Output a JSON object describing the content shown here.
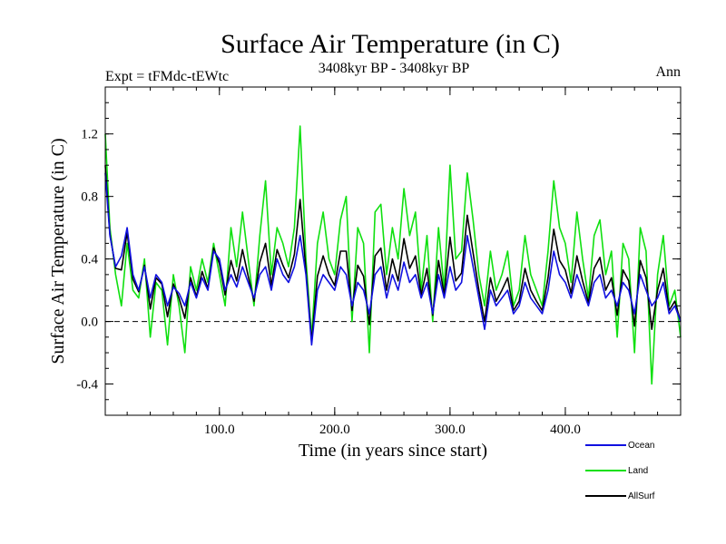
{
  "chart_data": {
    "type": "line",
    "title": "Surface Air Temperature (in C)",
    "subtitle": "3408kyr BP - 3408kyr BP",
    "experiment_label": "Expt = tFMdc-tEWtc",
    "season_label": "Ann",
    "xlabel": "Time (in years since start)",
    "ylabel": "Surface Air Temperature (in C)",
    "xlim": [
      1,
      500
    ],
    "ylim": [
      -0.6,
      1.5
    ],
    "x_ticks": [
      100,
      200,
      300,
      400
    ],
    "x_tick_labels": [
      "100.0",
      "200.0",
      "300.0",
      "400.0"
    ],
    "y_ticks": [
      -0.4,
      0.0,
      0.4,
      0.8,
      1.2
    ],
    "y_tick_labels": [
      "-0.4",
      "0.0",
      "0.4",
      "0.8",
      "1.2"
    ],
    "zero_line": 0.0,
    "legend_position": "bottom-right",
    "series": [
      {
        "name": "Ocean",
        "color": "#1010e0",
        "x": [
          1,
          5,
          10,
          15,
          20,
          25,
          30,
          35,
          40,
          45,
          50,
          55,
          60,
          65,
          70,
          75,
          80,
          85,
          90,
          95,
          100,
          105,
          110,
          115,
          120,
          125,
          130,
          135,
          140,
          145,
          150,
          155,
          160,
          165,
          170,
          175,
          180,
          185,
          190,
          195,
          200,
          205,
          210,
          215,
          220,
          225,
          230,
          235,
          240,
          245,
          250,
          255,
          260,
          265,
          270,
          275,
          280,
          285,
          290,
          295,
          300,
          305,
          310,
          315,
          320,
          325,
          330,
          335,
          340,
          345,
          350,
          355,
          360,
          365,
          370,
          375,
          380,
          385,
          390,
          395,
          400,
          405,
          410,
          415,
          420,
          425,
          430,
          435,
          440,
          445,
          450,
          455,
          460,
          465,
          470,
          475,
          480,
          485,
          490,
          495,
          500
        ],
        "values": [
          0.95,
          0.55,
          0.35,
          0.42,
          0.6,
          0.3,
          0.2,
          0.35,
          0.15,
          0.3,
          0.25,
          0.1,
          0.22,
          0.18,
          0.1,
          0.25,
          0.15,
          0.28,
          0.2,
          0.45,
          0.4,
          0.2,
          0.3,
          0.22,
          0.35,
          0.25,
          0.15,
          0.3,
          0.35,
          0.2,
          0.4,
          0.3,
          0.25,
          0.35,
          0.55,
          0.3,
          -0.15,
          0.2,
          0.3,
          0.25,
          0.2,
          0.35,
          0.3,
          0.1,
          0.25,
          0.2,
          0.05,
          0.3,
          0.35,
          0.15,
          0.3,
          0.2,
          0.38,
          0.25,
          0.3,
          0.15,
          0.25,
          0.05,
          0.3,
          0.15,
          0.35,
          0.2,
          0.25,
          0.55,
          0.35,
          0.15,
          -0.05,
          0.2,
          0.1,
          0.15,
          0.2,
          0.05,
          0.1,
          0.25,
          0.15,
          0.1,
          0.05,
          0.2,
          0.45,
          0.3,
          0.25,
          0.15,
          0.3,
          0.2,
          0.1,
          0.25,
          0.3,
          0.15,
          0.2,
          0.1,
          0.25,
          0.2,
          0.05,
          0.3,
          0.2,
          0.1,
          0.15,
          0.25,
          0.05,
          0.1,
          0.0
        ]
      },
      {
        "name": "Land",
        "color": "#10e010",
        "x": [
          1,
          5,
          10,
          15,
          20,
          25,
          30,
          35,
          40,
          45,
          50,
          55,
          60,
          65,
          70,
          75,
          80,
          85,
          90,
          95,
          100,
          105,
          110,
          115,
          120,
          125,
          130,
          135,
          140,
          145,
          150,
          155,
          160,
          165,
          170,
          175,
          180,
          185,
          190,
          195,
          200,
          205,
          210,
          215,
          220,
          225,
          230,
          235,
          240,
          245,
          250,
          255,
          260,
          265,
          270,
          275,
          280,
          285,
          290,
          295,
          300,
          305,
          310,
          315,
          320,
          325,
          330,
          335,
          340,
          345,
          350,
          355,
          360,
          365,
          370,
          375,
          380,
          385,
          390,
          395,
          400,
          405,
          410,
          415,
          420,
          425,
          430,
          435,
          440,
          445,
          450,
          455,
          460,
          465,
          470,
          475,
          480,
          485,
          490,
          495,
          500
        ],
        "values": [
          1.2,
          0.6,
          0.3,
          0.1,
          0.5,
          0.2,
          0.15,
          0.4,
          -0.1,
          0.25,
          0.2,
          -0.15,
          0.3,
          0.1,
          -0.2,
          0.35,
          0.2,
          0.4,
          0.25,
          0.5,
          0.3,
          0.1,
          0.6,
          0.35,
          0.7,
          0.4,
          0.1,
          0.55,
          0.9,
          0.3,
          0.6,
          0.5,
          0.35,
          0.6,
          1.25,
          0.4,
          -0.1,
          0.5,
          0.7,
          0.4,
          0.3,
          0.65,
          0.8,
          0.0,
          0.6,
          0.5,
          -0.2,
          0.7,
          0.75,
          0.3,
          0.6,
          0.4,
          0.85,
          0.55,
          0.7,
          0.2,
          0.55,
          0.0,
          0.6,
          0.2,
          1.0,
          0.4,
          0.45,
          0.95,
          0.65,
          0.3,
          0.1,
          0.45,
          0.2,
          0.3,
          0.45,
          0.1,
          0.2,
          0.55,
          0.3,
          0.2,
          0.1,
          0.45,
          0.9,
          0.6,
          0.5,
          0.25,
          0.7,
          0.4,
          0.15,
          0.55,
          0.65,
          0.3,
          0.45,
          -0.1,
          0.5,
          0.4,
          -0.2,
          0.6,
          0.45,
          -0.4,
          0.3,
          0.55,
          0.1,
          0.2,
          -0.1
        ]
      },
      {
        "name": "AllSurf",
        "color": "#000000",
        "x": [
          1,
          5,
          10,
          15,
          20,
          25,
          30,
          35,
          40,
          45,
          50,
          55,
          60,
          65,
          70,
          75,
          80,
          85,
          90,
          95,
          100,
          105,
          110,
          115,
          120,
          125,
          130,
          135,
          140,
          145,
          150,
          155,
          160,
          165,
          170,
          175,
          180,
          185,
          190,
          195,
          200,
          205,
          210,
          215,
          220,
          225,
          230,
          235,
          240,
          245,
          250,
          255,
          260,
          265,
          270,
          275,
          280,
          285,
          290,
          295,
          300,
          305,
          310,
          315,
          320,
          325,
          330,
          335,
          340,
          345,
          350,
          355,
          360,
          365,
          370,
          375,
          380,
          385,
          390,
          395,
          400,
          405,
          410,
          415,
          420,
          425,
          430,
          435,
          440,
          445,
          450,
          455,
          460,
          465,
          470,
          475,
          480,
          485,
          490,
          495,
          500
        ],
        "values": [
          1.0,
          0.56,
          0.34,
          0.33,
          0.57,
          0.27,
          0.19,
          0.36,
          0.08,
          0.28,
          0.24,
          0.03,
          0.24,
          0.15,
          0.02,
          0.28,
          0.16,
          0.32,
          0.21,
          0.47,
          0.37,
          0.17,
          0.39,
          0.26,
          0.46,
          0.29,
          0.13,
          0.38,
          0.5,
          0.23,
          0.46,
          0.36,
          0.28,
          0.43,
          0.78,
          0.33,
          -0.13,
          0.29,
          0.42,
          0.3,
          0.23,
          0.45,
          0.45,
          0.07,
          0.36,
          0.29,
          -0.02,
          0.42,
          0.47,
          0.2,
          0.4,
          0.26,
          0.53,
          0.34,
          0.42,
          0.17,
          0.34,
          0.04,
          0.39,
          0.17,
          0.54,
          0.26,
          0.31,
          0.68,
          0.44,
          0.2,
          0.0,
          0.28,
          0.13,
          0.2,
          0.28,
          0.07,
          0.13,
          0.34,
          0.2,
          0.13,
          0.07,
          0.28,
          0.59,
          0.39,
          0.33,
          0.18,
          0.42,
          0.26,
          0.12,
          0.34,
          0.41,
          0.2,
          0.28,
          0.04,
          0.33,
          0.26,
          -0.03,
          0.39,
          0.28,
          -0.05,
          0.2,
          0.34,
          0.07,
          0.13,
          0.0
        ]
      }
    ]
  }
}
